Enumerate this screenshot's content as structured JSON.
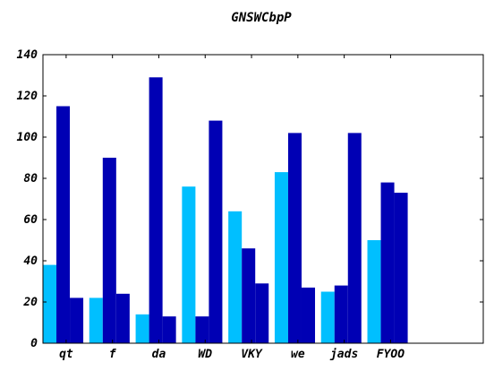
{
  "chart_data": {
    "type": "bar",
    "title": "GNSWCbpP",
    "xlabel": "",
    "ylabel": "",
    "categories": [
      "qt",
      "f",
      "da",
      "WD",
      "VKY",
      "we",
      "jads",
      "FYOO"
    ],
    "series": [
      {
        "color": "#00bfff",
        "values": [
          38,
          22,
          14,
          76,
          64,
          83,
          25,
          50
        ]
      },
      {
        "color": "#0000b4",
        "values": [
          115,
          90,
          129,
          13,
          46,
          102,
          28,
          78
        ]
      },
      {
        "color": "#0000b4",
        "values": [
          22,
          24,
          13,
          108,
          29,
          27,
          102,
          73
        ]
      }
    ],
    "ylim": [
      0,
      140
    ],
    "yticks": [
      0,
      20,
      40,
      60,
      80,
      100,
      120,
      140
    ],
    "xlim": [
      0,
      9.5
    ],
    "grid": false,
    "legend": "none"
  }
}
